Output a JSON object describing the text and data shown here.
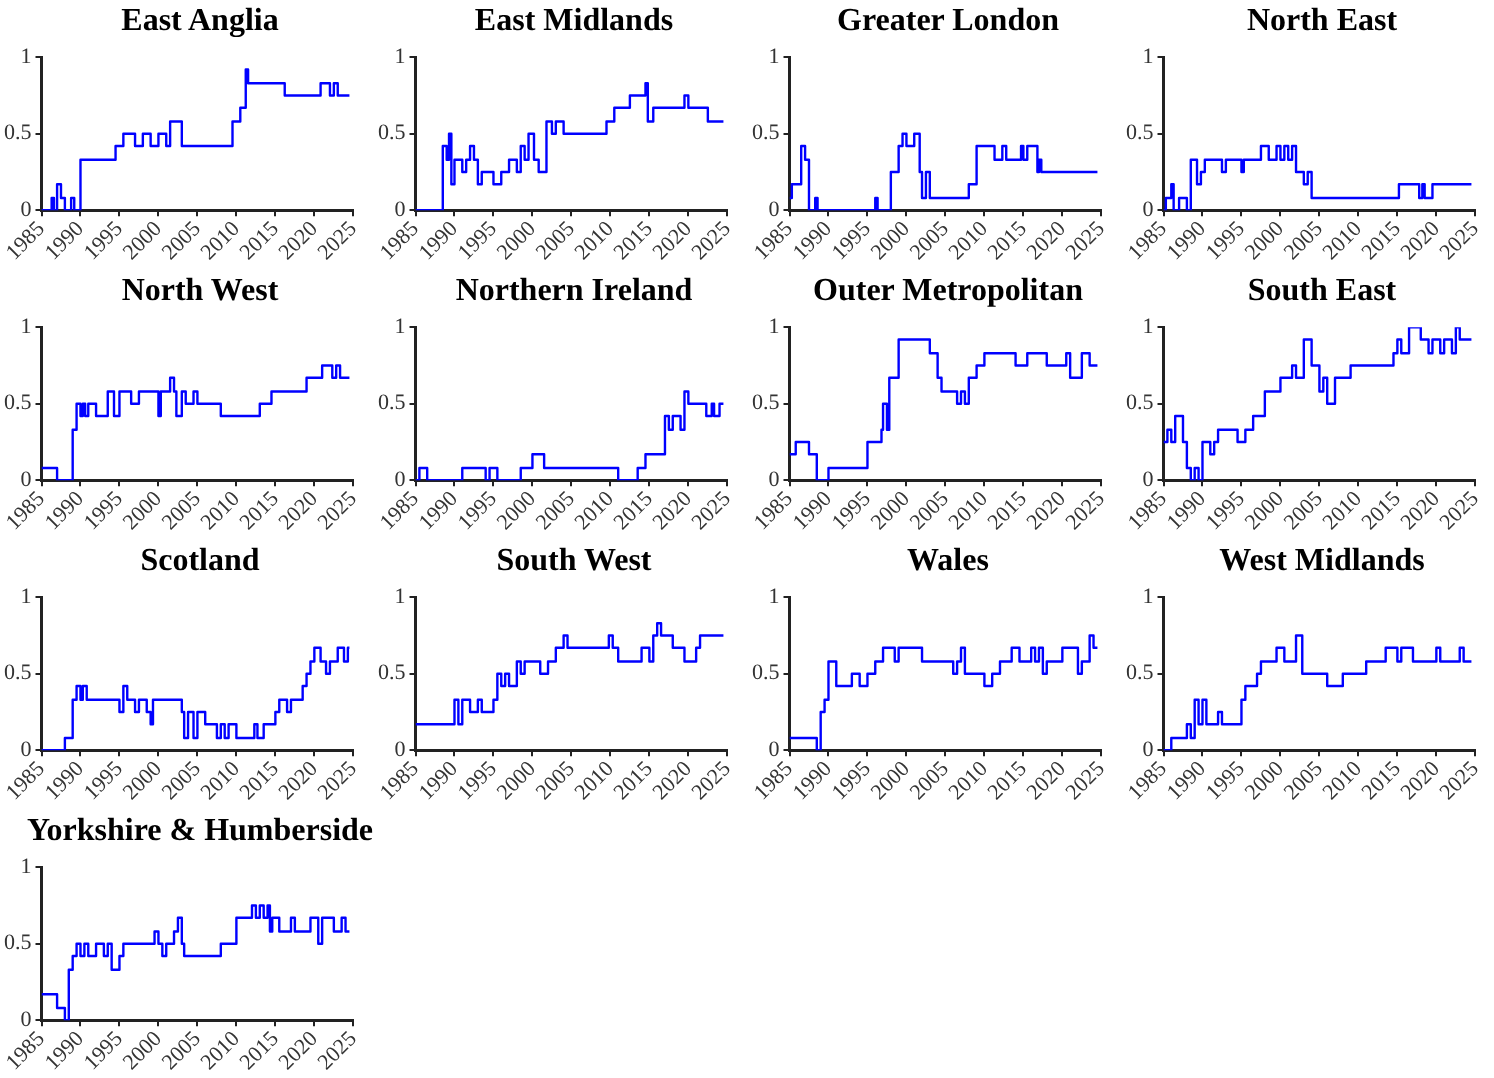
{
  "chart_data": [
    {
      "type": "step",
      "title": "East Anglia",
      "color": "#0000ff",
      "xlim": [
        1985,
        2025
      ],
      "xticks": [
        1985,
        1990,
        1995,
        2000,
        2005,
        2010,
        2015,
        2020,
        2025
      ],
      "ylim": [
        0,
        1
      ],
      "yticks": [
        0,
        0.5,
        1
      ],
      "grid": false,
      "x": [
        1985,
        1986.3,
        1986.6,
        1987,
        1987.5,
        1988,
        1988.8,
        1989.2,
        1990,
        1994.5,
        1995.5,
        1997,
        1998,
        1999,
        2000,
        2001,
        2001.5,
        2003,
        2009.5,
        2010.5,
        2011.2,
        2011.5,
        2016.2,
        2020.8,
        2022,
        2022.5,
        2023,
        2024.5
      ],
      "values": [
        0,
        0.08,
        0,
        0.17,
        0.08,
        0,
        0.08,
        0,
        0.33,
        0.42,
        0.5,
        0.42,
        0.5,
        0.42,
        0.5,
        0.42,
        0.58,
        0.42,
        0.58,
        0.67,
        0.92,
        0.83,
        0.75,
        0.83,
        0.75,
        0.83,
        0.75,
        0.75
      ]
    },
    {
      "type": "step",
      "title": "East Midlands",
      "color": "#0000ff",
      "xlim": [
        1985,
        2025
      ],
      "xticks": [
        1985,
        1990,
        1995,
        2000,
        2005,
        2010,
        2015,
        2020,
        2025
      ],
      "ylim": [
        0,
        1
      ],
      "yticks": [
        0,
        0.5,
        1
      ],
      "grid": false,
      "x": [
        1985,
        1988.5,
        1989,
        1989.3,
        1989.6,
        1990,
        1991,
        1991.5,
        1992,
        1992.5,
        1993,
        1993.5,
        1995,
        1996,
        1997,
        1998,
        1998.5,
        1999,
        1999.5,
        2000.2,
        2000.8,
        2001.8,
        2002.5,
        2003,
        2004,
        2009.5,
        2010.5,
        2012.5,
        2014.5,
        2014.8,
        2015.5,
        2019.5,
        2020,
        2022.5,
        2024.5
      ],
      "values": [
        0,
        0.42,
        0.33,
        0.5,
        0.17,
        0.33,
        0.25,
        0.33,
        0.42,
        0.33,
        0.17,
        0.25,
        0.17,
        0.25,
        0.33,
        0.25,
        0.42,
        0.33,
        0.5,
        0.33,
        0.25,
        0.58,
        0.5,
        0.58,
        0.5,
        0.58,
        0.67,
        0.75,
        0.83,
        0.58,
        0.67,
        0.75,
        0.67,
        0.58,
        0.58
      ]
    },
    {
      "type": "step",
      "title": "Greater London",
      "color": "#0000ff",
      "xlim": [
        1985,
        2025
      ],
      "xticks": [
        1985,
        1990,
        1995,
        2000,
        2005,
        2010,
        2015,
        2020,
        2025
      ],
      "ylim": [
        0,
        1
      ],
      "yticks": [
        0,
        0.5,
        1
      ],
      "grid": false,
      "x": [
        1985,
        1985.3,
        1986.5,
        1987,
        1987.5,
        1988.3,
        1988.6,
        1996,
        1996.3,
        1998,
        1999,
        1999.5,
        2000,
        2001,
        2001.7,
        2002,
        2002.5,
        2003,
        2008,
        2009,
        2011.3,
        2012.3,
        2012.8,
        2014.7,
        2015,
        2015.5,
        2016.8,
        2017,
        2017.3,
        2024.5
      ],
      "values": [
        0.08,
        0.17,
        0.42,
        0.33,
        0,
        0.08,
        0,
        0.08,
        0,
        0.25,
        0.42,
        0.5,
        0.42,
        0.5,
        0.25,
        0.08,
        0.25,
        0.08,
        0.17,
        0.42,
        0.33,
        0.42,
        0.33,
        0.42,
        0.33,
        0.42,
        0.25,
        0.33,
        0.25,
        0.25
      ]
    },
    {
      "type": "step",
      "title": "North East",
      "color": "#0000ff",
      "xlim": [
        1985,
        2025
      ],
      "xticks": [
        1985,
        1990,
        1995,
        2000,
        2005,
        2010,
        2015,
        2020,
        2025
      ],
      "ylim": [
        0,
        1
      ],
      "yticks": [
        0,
        0.5,
        1
      ],
      "grid": false,
      "x": [
        1985,
        1985.3,
        1986,
        1986.3,
        1987,
        1988,
        1988.5,
        1989.3,
        1989.8,
        1990.3,
        1992.5,
        1993,
        1995,
        1995.3,
        1997.5,
        1998.5,
        1999.5,
        2000,
        2000.5,
        2001,
        2001.5,
        2002,
        2003,
        2003.5,
        2004,
        2015.2,
        2017.8,
        2018.2,
        2018.5,
        2019.5,
        2024.5
      ],
      "values": [
        0,
        0.08,
        0.17,
        0,
        0.08,
        0,
        0.33,
        0.17,
        0.25,
        0.33,
        0.25,
        0.33,
        0.25,
        0.33,
        0.42,
        0.33,
        0.42,
        0.33,
        0.42,
        0.33,
        0.42,
        0.25,
        0.17,
        0.25,
        0.08,
        0.17,
        0.08,
        0.17,
        0.08,
        0.17,
        0.17
      ]
    },
    {
      "type": "step",
      "title": "North West",
      "color": "#0000ff",
      "xlim": [
        1985,
        2025
      ],
      "xticks": [
        1985,
        1990,
        1995,
        2000,
        2005,
        2010,
        2015,
        2020,
        2025
      ],
      "ylim": [
        0,
        1
      ],
      "yticks": [
        0,
        0.5,
        1
      ],
      "grid": false,
      "x": [
        1985,
        1987,
        1989,
        1989.5,
        1990,
        1990.3,
        1990.6,
        1991,
        1992,
        1993.5,
        1994.3,
        1995,
        1996.5,
        1997.5,
        2000,
        2000.3,
        2001.5,
        2002,
        2002.3,
        2003,
        2003.5,
        2004.5,
        2005,
        2008,
        2013,
        2014.5,
        2019,
        2021,
        2022.3,
        2022.8,
        2023.3,
        2024.5
      ],
      "values": [
        0.08,
        0,
        0.33,
        0.5,
        0.42,
        0.5,
        0.42,
        0.5,
        0.42,
        0.58,
        0.42,
        0.58,
        0.5,
        0.58,
        0.42,
        0.58,
        0.67,
        0.58,
        0.42,
        0.58,
        0.5,
        0.58,
        0.5,
        0.42,
        0.5,
        0.58,
        0.67,
        0.75,
        0.67,
        0.75,
        0.67,
        0.67
      ]
    },
    {
      "type": "step",
      "title": "Northern Ireland",
      "color": "#0000ff",
      "xlim": [
        1985,
        2025
      ],
      "xticks": [
        1985,
        1990,
        1995,
        2000,
        2005,
        2010,
        2015,
        2020,
        2025
      ],
      "ylim": [
        0,
        1
      ],
      "yticks": [
        0,
        0.5,
        1
      ],
      "grid": false,
      "x": [
        1985,
        1985.5,
        1986.5,
        1991,
        1994,
        1994.5,
        1995.5,
        1998.5,
        2000,
        2001.5,
        2011,
        2013.5,
        2014.5,
        2017,
        2017.5,
        2018,
        2019,
        2019.5,
        2020,
        2022.3,
        2023,
        2023.3,
        2024,
        2024.5
      ],
      "values": [
        0,
        0.08,
        0,
        0.08,
        0,
        0.08,
        0,
        0.08,
        0.17,
        0.08,
        0,
        0.08,
        0.17,
        0.42,
        0.33,
        0.42,
        0.33,
        0.58,
        0.5,
        0.42,
        0.5,
        0.42,
        0.5,
        0.5
      ]
    },
    {
      "type": "step",
      "title": "Outer Metropolitan",
      "color": "#0000ff",
      "xlim": [
        1985,
        2025
      ],
      "xticks": [
        1985,
        1990,
        1995,
        2000,
        2005,
        2010,
        2015,
        2020,
        2025
      ],
      "ylim": [
        0,
        1
      ],
      "yticks": [
        0,
        0.5,
        1
      ],
      "grid": false,
      "x": [
        1985,
        1985.8,
        1987.5,
        1988.5,
        1990,
        1995,
        1996.8,
        1997,
        1997.5,
        1997.8,
        1999,
        2003,
        2004,
        2004.5,
        2006.5,
        2007,
        2007.5,
        2008,
        2009,
        2010,
        2014,
        2015.5,
        2018,
        2020.5,
        2021,
        2022.5,
        2023.5,
        2024.5
      ],
      "values": [
        0.17,
        0.25,
        0.17,
        0,
        0.08,
        0.25,
        0.33,
        0.5,
        0.33,
        0.67,
        0.92,
        0.83,
        0.67,
        0.58,
        0.5,
        0.58,
        0.5,
        0.67,
        0.75,
        0.83,
        0.75,
        0.83,
        0.75,
        0.83,
        0.67,
        0.83,
        0.75,
        0.75
      ]
    },
    {
      "type": "step",
      "title": "South East",
      "color": "#0000ff",
      "xlim": [
        1985,
        2025
      ],
      "xticks": [
        1985,
        1990,
        1995,
        2000,
        2005,
        2010,
        2015,
        2020,
        2025
      ],
      "ylim": [
        0,
        1
      ],
      "yticks": [
        0,
        0.5,
        1
      ],
      "grid": false,
      "x": [
        1985,
        1985.5,
        1986,
        1986.5,
        1987.5,
        1988,
        1988.5,
        1989,
        1989.5,
        1990,
        1991,
        1991.5,
        1992,
        1994.5,
        1995.5,
        1996.5,
        1998,
        2000,
        2001.5,
        2002,
        2003,
        2004,
        2005,
        2005.5,
        2006,
        2007,
        2009,
        2014.5,
        2015,
        2015.5,
        2016.5,
        2018,
        2019,
        2019.5,
        2020.5,
        2021,
        2022,
        2022.5,
        2023,
        2024.5
      ],
      "values": [
        0.25,
        0.33,
        0.25,
        0.42,
        0.25,
        0.08,
        0,
        0.08,
        0,
        0.25,
        0.17,
        0.25,
        0.33,
        0.25,
        0.33,
        0.42,
        0.58,
        0.67,
        0.75,
        0.67,
        0.92,
        0.75,
        0.58,
        0.67,
        0.5,
        0.67,
        0.75,
        0.83,
        0.92,
        0.83,
        1,
        0.92,
        0.83,
        0.92,
        0.83,
        0.92,
        0.83,
        1,
        0.92,
        0.92
      ]
    },
    {
      "type": "step",
      "title": "Scotland",
      "color": "#0000ff",
      "xlim": [
        1985,
        2025
      ],
      "xticks": [
        1985,
        1990,
        1995,
        2000,
        2005,
        2010,
        2015,
        2020,
        2025
      ],
      "ylim": [
        0,
        1
      ],
      "yticks": [
        0,
        0.5,
        1
      ],
      "grid": false,
      "x": [
        1985,
        1988,
        1989,
        1989.5,
        1990,
        1990.3,
        1990.8,
        1995,
        1995.5,
        1996,
        1997,
        1997.5,
        1998.5,
        1999,
        1999.3,
        2003,
        2003.3,
        2003.8,
        2004.5,
        2005,
        2006,
        2007.5,
        2008,
        2008.5,
        2009,
        2010,
        2012.3,
        2012.7,
        2013.5,
        2015,
        2015.5,
        2016.5,
        2017,
        2018.5,
        2019,
        2019.5,
        2020,
        2020.8,
        2021.5,
        2022,
        2023,
        2023.8,
        2024.3,
        2024.5
      ],
      "values": [
        0,
        0.08,
        0.33,
        0.42,
        0.33,
        0.42,
        0.33,
        0.25,
        0.42,
        0.33,
        0.25,
        0.33,
        0.25,
        0.17,
        0.33,
        0.25,
        0.08,
        0.25,
        0.08,
        0.25,
        0.17,
        0.08,
        0.17,
        0.08,
        0.17,
        0.08,
        0.17,
        0.08,
        0.17,
        0.25,
        0.33,
        0.25,
        0.33,
        0.42,
        0.5,
        0.58,
        0.67,
        0.58,
        0.5,
        0.58,
        0.67,
        0.58,
        0.67,
        0.67
      ]
    },
    {
      "type": "step",
      "title": "South West",
      "color": "#0000ff",
      "xlim": [
        1985,
        2025
      ],
      "xticks": [
        1985,
        1990,
        1995,
        2000,
        2005,
        2010,
        2015,
        2020,
        2025
      ],
      "ylim": [
        0,
        1
      ],
      "yticks": [
        0,
        0.5,
        1
      ],
      "grid": false,
      "x": [
        1985,
        1990,
        1990.5,
        1991,
        1992,
        1993,
        1993.5,
        1995,
        1995.5,
        1996,
        1996.5,
        1997,
        1998,
        1998.5,
        1999,
        2001,
        2002,
        2003,
        2004,
        2004.5,
        2009.8,
        2010.3,
        2011,
        2014,
        2015,
        2015.5,
        2016,
        2016.5,
        2018,
        2019.5,
        2021,
        2021.5,
        2024.5
      ],
      "values": [
        0.17,
        0.33,
        0.17,
        0.33,
        0.25,
        0.33,
        0.25,
        0.33,
        0.5,
        0.42,
        0.5,
        0.42,
        0.58,
        0.5,
        0.58,
        0.5,
        0.58,
        0.67,
        0.75,
        0.67,
        0.75,
        0.67,
        0.58,
        0.67,
        0.58,
        0.75,
        0.83,
        0.75,
        0.67,
        0.58,
        0.67,
        0.75,
        0.75
      ]
    },
    {
      "type": "step",
      "title": "Wales",
      "color": "#0000ff",
      "xlim": [
        1985,
        2025
      ],
      "xticks": [
        1985,
        1990,
        1995,
        2000,
        2005,
        2010,
        2015,
        2020,
        2025
      ],
      "ylim": [
        0,
        1
      ],
      "yticks": [
        0,
        0.5,
        1
      ],
      "grid": false,
      "x": [
        1985,
        1988.5,
        1989,
        1989.5,
        1990,
        1991,
        1993,
        1994,
        1995,
        1996,
        1997,
        1998.5,
        1999,
        2002,
        2006,
        2006.5,
        2007,
        2007.5,
        2010,
        2011,
        2012,
        2013.5,
        2014.5,
        2016,
        2016.5,
        2017,
        2017.5,
        2018,
        2020,
        2022,
        2022.5,
        2023.5,
        2024,
        2024.5
      ],
      "values": [
        0.08,
        0,
        0.25,
        0.33,
        0.58,
        0.42,
        0.5,
        0.42,
        0.5,
        0.58,
        0.67,
        0.58,
        0.67,
        0.58,
        0.5,
        0.58,
        0.67,
        0.5,
        0.42,
        0.5,
        0.58,
        0.67,
        0.58,
        0.67,
        0.58,
        0.67,
        0.5,
        0.58,
        0.67,
        0.5,
        0.58,
        0.75,
        0.67,
        0.67
      ]
    },
    {
      "type": "step",
      "title": "West Midlands",
      "color": "#0000ff",
      "xlim": [
        1985,
        2025
      ],
      "xticks": [
        1985,
        1990,
        1995,
        2000,
        2005,
        2010,
        2015,
        2020,
        2025
      ],
      "ylim": [
        0,
        1
      ],
      "yticks": [
        0,
        0.5,
        1
      ],
      "grid": false,
      "x": [
        1985,
        1986,
        1988,
        1988.5,
        1989,
        1989.5,
        1990,
        1990.5,
        1992,
        1992.5,
        1995,
        1995.5,
        1997,
        1997.5,
        1999.5,
        2000.5,
        2002,
        2002.8,
        2006,
        2008,
        2011,
        2013.5,
        2015,
        2015.5,
        2017,
        2020,
        2020.5,
        2023,
        2023.5,
        2024.5
      ],
      "values": [
        0,
        0.08,
        0.17,
        0.08,
        0.33,
        0.17,
        0.33,
        0.17,
        0.25,
        0.17,
        0.33,
        0.42,
        0.5,
        0.58,
        0.67,
        0.58,
        0.75,
        0.5,
        0.42,
        0.5,
        0.58,
        0.67,
        0.58,
        0.67,
        0.58,
        0.67,
        0.58,
        0.67,
        0.58,
        0.58
      ]
    },
    {
      "type": "step",
      "title": "Yorkshire & Humberside",
      "color": "#0000ff",
      "xlim": [
        1985,
        2025
      ],
      "xticks": [
        1985,
        1990,
        1995,
        2000,
        2005,
        2010,
        2015,
        2020,
        2025
      ],
      "ylim": [
        0,
        1
      ],
      "yticks": [
        0,
        0.5,
        1
      ],
      "grid": false,
      "x": [
        1985,
        1987,
        1988,
        1988.5,
        1989,
        1989.5,
        1990,
        1990.5,
        1991,
        1992,
        1993,
        1993.5,
        1994,
        1995,
        1995.5,
        1999.5,
        2000,
        2000.5,
        2001,
        2002,
        2002.5,
        2003,
        2003.3,
        2008,
        2010,
        2012,
        2012.5,
        2013,
        2013.5,
        2014,
        2014.3,
        2014.6,
        2015.5,
        2017,
        2017.5,
        2019.5,
        2020.5,
        2021,
        2022.5,
        2023.5,
        2024,
        2024.5
      ],
      "values": [
        0.17,
        0.08,
        0,
        0.33,
        0.42,
        0.5,
        0.42,
        0.5,
        0.42,
        0.5,
        0.42,
        0.5,
        0.33,
        0.42,
        0.5,
        0.58,
        0.5,
        0.42,
        0.5,
        0.58,
        0.67,
        0.5,
        0.42,
        0.5,
        0.67,
        0.75,
        0.67,
        0.75,
        0.67,
        0.75,
        0.58,
        0.67,
        0.58,
        0.67,
        0.58,
        0.67,
        0.5,
        0.67,
        0.58,
        0.67,
        0.58,
        0.58
      ]
    }
  ]
}
